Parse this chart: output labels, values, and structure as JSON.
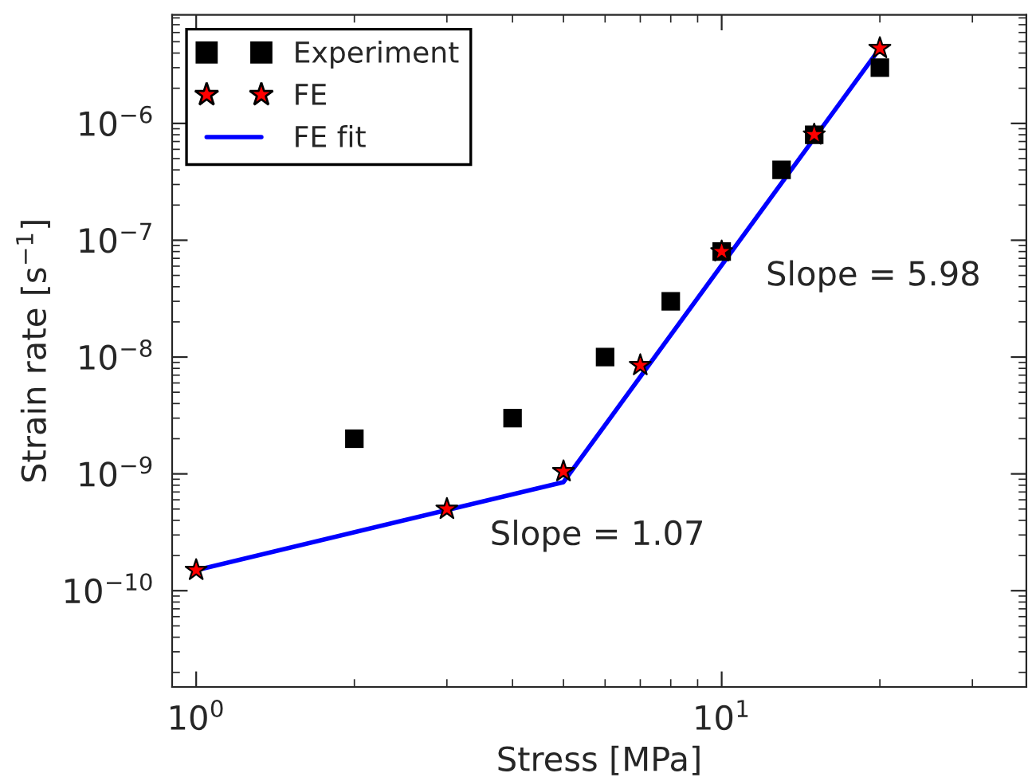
{
  "chart_data": {
    "type": "scatter",
    "xlabel": "Stress [MPa]",
    "ylabel": "Strain rate [s$^{−1}$]",
    "log": "xy",
    "grid": false,
    "legend": "top left",
    "xlim": [
      0.9,
      38
    ],
    "xticks": [
      {
        "value": 1,
        "label": "10$^{0}$"
      },
      {
        "value": 10,
        "label": "10$^{1}$"
      }
    ],
    "ylim": [
      1.5e-11,
      8.5e-06
    ],
    "yticks": [
      {
        "value": 1e-10,
        "label": "10$^{−10}$"
      },
      {
        "value": 1e-09,
        "label": "10$^{−9}$"
      },
      {
        "value": 1e-08,
        "label": "10$^{−8}$"
      },
      {
        "value": 1e-07,
        "label": "10$^{−7}$"
      },
      {
        "value": 1e-06,
        "label": "10$^{−6}$"
      }
    ],
    "series": [
      {
        "name": "Experiment",
        "marker": "square",
        "color": "#000000",
        "x": [
          2,
          4,
          6,
          8,
          10,
          13,
          15,
          20
        ],
        "values": [
          2e-09,
          3e-09,
          1e-08,
          3e-08,
          8e-08,
          4e-07,
          8e-07,
          3e-06
        ]
      },
      {
        "name": "FE",
        "marker": "star",
        "color": "#ff0000",
        "x": [
          1,
          3,
          5,
          7,
          10,
          15,
          20
        ],
        "values": [
          1.5e-10,
          5e-10,
          1.05e-09,
          8.5e-09,
          8e-08,
          8e-07,
          4.4e-06
        ]
      },
      {
        "name": "FE fit",
        "type": "line",
        "marker": "none",
        "line_style": "solid",
        "color": "#0000ff",
        "x": [
          1,
          5,
          20
        ],
        "values": [
          1.5e-10,
          8.5e-10,
          4.4e-06
        ]
      }
    ],
    "annotations": [
      "Slope = 1.07",
      "Slope = 5.98"
    ]
  }
}
